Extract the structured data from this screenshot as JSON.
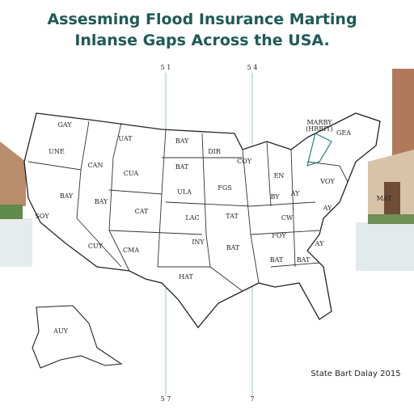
{
  "title": {
    "line1": "Assesming Flood Insurance Marting",
    "line2": "Inlanse Gaps Across the USA."
  },
  "guide_labels": [
    "5 1",
    "5 4",
    "5 7",
    "7"
  ],
  "map": {
    "state_labels": [
      "GAY",
      "UAT",
      "BAY",
      "DIR",
      "UNE",
      "CAN",
      "CUA",
      "BAT",
      "COY",
      "EN",
      "BAY",
      "BAY",
      "CAT",
      "ULA",
      "FGS",
      "BY",
      "AY",
      "VOY",
      "SOY",
      "LAC",
      "TAT",
      "CW",
      "AY",
      "FOY",
      "CUY",
      "CMA",
      "INY",
      "BAT",
      "AY",
      "HAT",
      "BAT",
      "BAT",
      "MAT"
    ],
    "alaska_label": "AUY",
    "callout": {
      "line1": "MARBY",
      "line2": "(HRBIT)",
      "line3": "GEA"
    }
  },
  "footer": "State Bart Dalay 2015"
}
